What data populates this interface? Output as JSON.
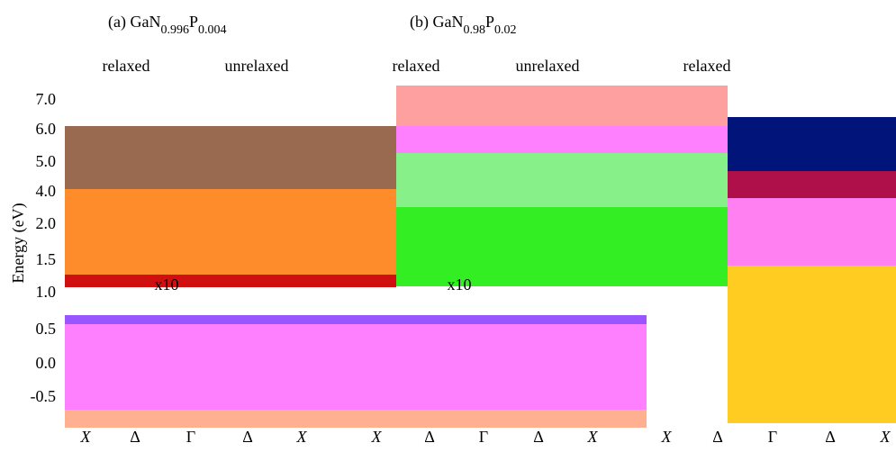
{
  "panels": [
    {
      "prefix": "(a) GaN",
      "sub1": "0.996",
      "mid": "P",
      "sub2": "0.004"
    },
    {
      "prefix": "(b) GaN",
      "sub1": "0.98",
      "mid": "P",
      "sub2": "0.02"
    }
  ],
  "column_labels": [
    "relaxed",
    "unrelaxed",
    "relaxed",
    "unrelaxed",
    "relaxed"
  ],
  "y_axis": {
    "label": "Energy (eV)",
    "ticks": [
      "7.0",
      "6.0",
      "5.0",
      "4.0",
      "2.0",
      "1.5",
      "1.0",
      "0.5",
      "0.0",
      "-0.5"
    ]
  },
  "scale_notes": [
    "x10",
    "x10"
  ],
  "x_labels": [
    "X",
    "Δ",
    "Γ",
    "Δ",
    "X",
    "X",
    "Δ",
    "Γ",
    "Δ",
    "X",
    "X",
    "Δ",
    "Γ",
    "Δ",
    "X"
  ]
}
